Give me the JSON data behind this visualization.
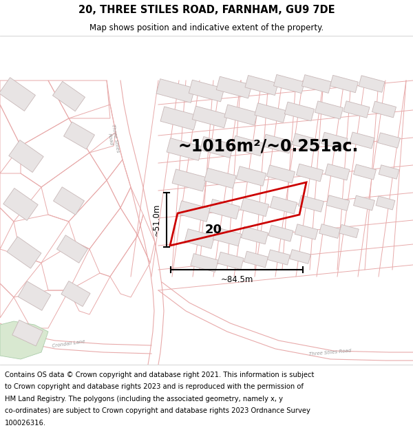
{
  "title": "20, THREE STILES ROAD, FARNHAM, GU9 7DE",
  "subtitle": "Map shows position and indicative extent of the property.",
  "area_text": "~1016m²/~0.251ac.",
  "property_label": "20",
  "dim_vertical": "~51.0m",
  "dim_horizontal": "~84.5m",
  "footer_lines": [
    "Contains OS data © Crown copyright and database right 2021. This information is subject",
    "to Crown copyright and database rights 2023 and is reproduced with the permission of",
    "HM Land Registry. The polygons (including the associated geometry, namely x, y",
    "co-ordinates) are subject to Crown copyright and database rights 2023 Ordnance Survey",
    "100026316."
  ],
  "bg_color": "#ffffff",
  "map_bg": "#f8f4f4",
  "road_color": "#e8aaaa",
  "highlight_color": "#cc0000",
  "building_fill": "#e8e4e4",
  "building_edge": "#c8b8b8",
  "green_fill": "#d8e8d0",
  "title_fontsize": 10.5,
  "subtitle_fontsize": 8.5,
  "area_fontsize": 17,
  "label_fontsize": 13,
  "footer_fontsize": 7.2,
  "road_label_color": "#999999",
  "road_lw": 0.8,
  "plot_lw": 0.7
}
